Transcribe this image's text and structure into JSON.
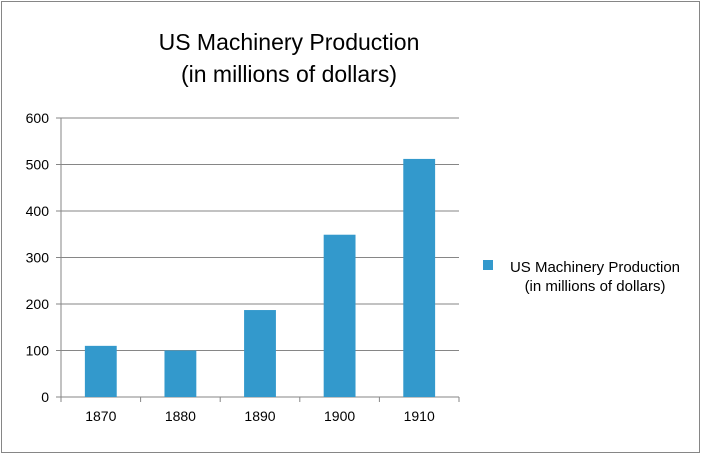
{
  "chart_data": {
    "type": "bar",
    "title": [
      "US Machinery Production",
      "(in millions of dollars)"
    ],
    "categories": [
      "1870",
      "1880",
      "1890",
      "1900",
      "1910"
    ],
    "series": [
      {
        "name": "US Machinery Production\n(in millions of dollars)",
        "values": [
          110,
          100,
          187,
          349,
          512
        ],
        "color": "#3399cc"
      }
    ],
    "xlabel": "",
    "ylabel": "",
    "ylim": [
      0,
      600
    ],
    "yticks": [
      0,
      100,
      200,
      300,
      400,
      500,
      600
    ],
    "grid": true,
    "legend": "right"
  }
}
